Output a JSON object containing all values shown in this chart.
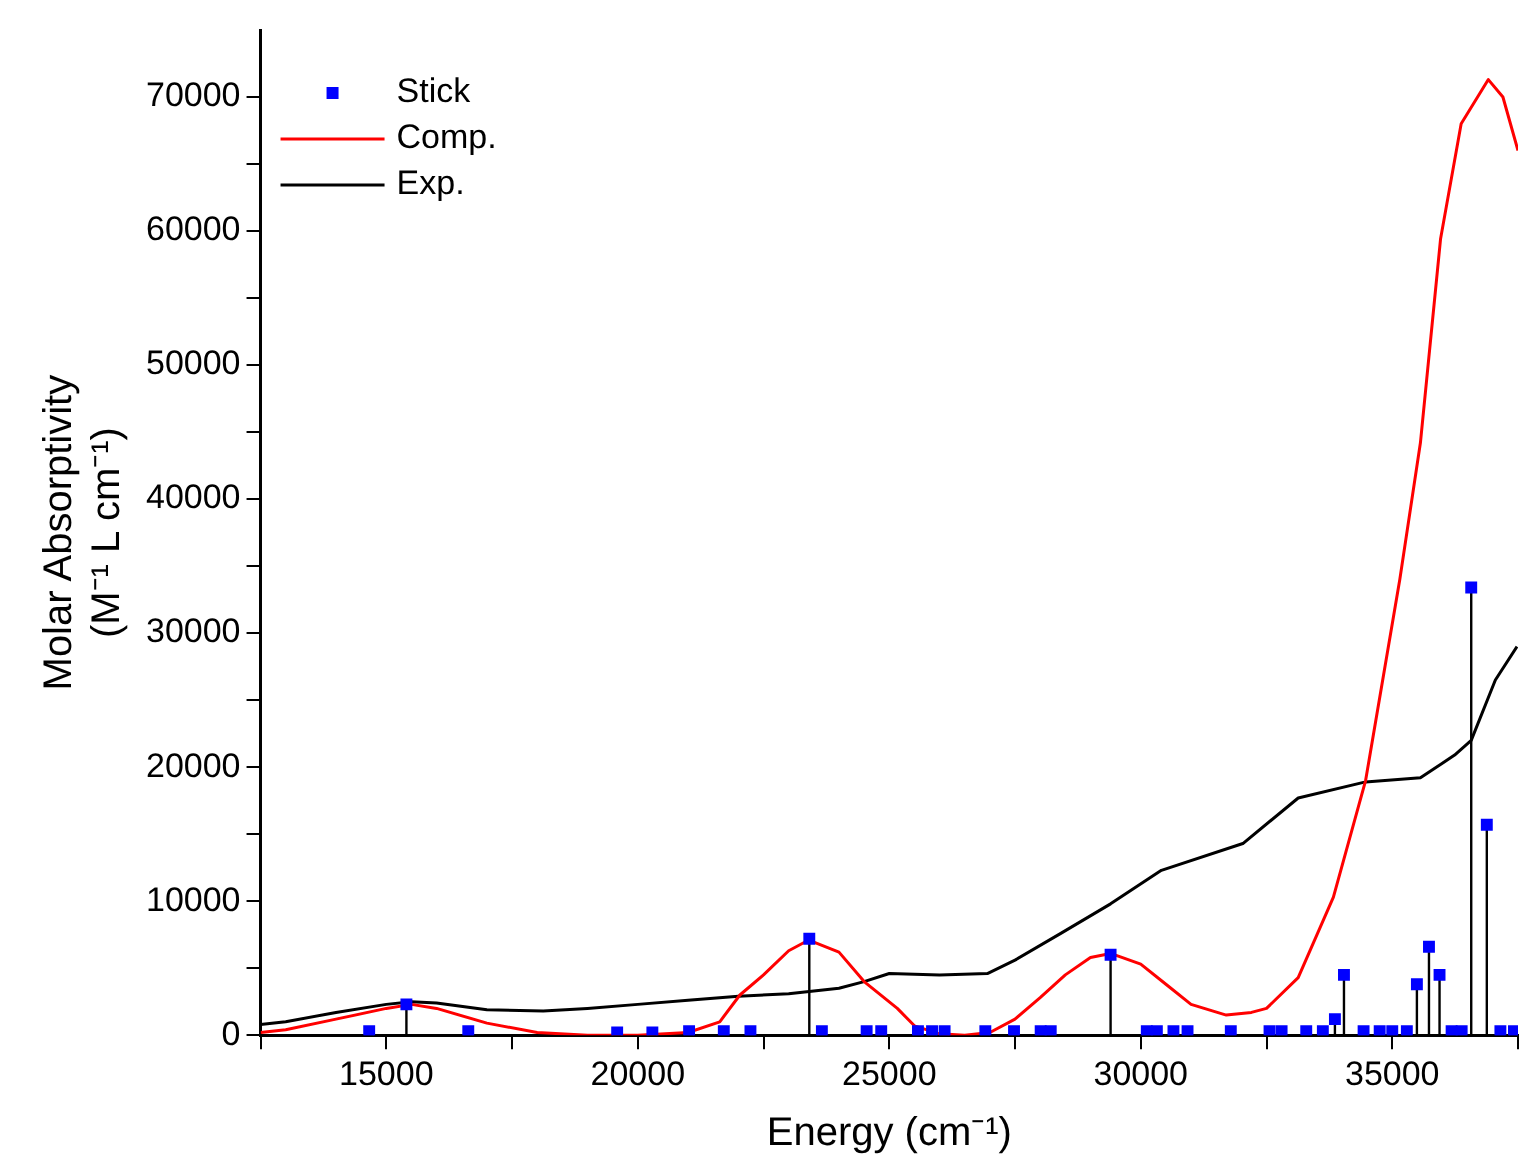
{
  "chart_data": {
    "type": "line",
    "xlabel": "Energy (cm⁻¹)",
    "ylabel": "Molar Absorptivity\n(M⁻¹ L cm⁻¹)",
    "xlim": [
      12500,
      37500
    ],
    "ylim": [
      0,
      75000
    ],
    "xticks": [
      {
        "value": 12500,
        "label": null
      },
      15000,
      {
        "value": 17500,
        "label": null
      },
      20000,
      {
        "value": 22500,
        "label": null
      },
      25000,
      {
        "value": 27500,
        "label": null
      },
      30000,
      {
        "value": 32500,
        "label": null
      },
      35000,
      {
        "value": 37500,
        "label": null
      }
    ],
    "yticks": [
      0,
      {
        "value": 5000,
        "label": null
      },
      10000,
      {
        "value": 15000,
        "label": null
      },
      20000,
      {
        "value": 25000,
        "label": null
      },
      30000,
      {
        "value": 35000,
        "label": null
      },
      40000,
      {
        "value": 45000,
        "label": null
      },
      50000,
      {
        "value": 55000,
        "label": null
      },
      60000,
      {
        "value": 65000,
        "label": null
      },
      70000
    ],
    "legend": "top left",
    "grid": false,
    "series": [
      {
        "name": "Stick",
        "type": "lollipop",
        "marker": "square",
        "color": "#0000ff",
        "x": [
          14660,
          15400,
          16630,
          19590,
          20290,
          21020,
          21710,
          22240,
          23410,
          23660,
          24550,
          24840,
          25570,
          25850,
          26100,
          26910,
          27480,
          28010,
          28210,
          29400,
          30120,
          30320,
          30650,
          30930,
          31790,
          32560,
          32800,
          33290,
          33620,
          33860,
          34040,
          34430,
          34750,
          35000,
          35290,
          35490,
          35730,
          35940,
          36180,
          36380,
          36570,
          36880,
          37150,
          37420
        ],
        "values": [
          300,
          2300,
          300,
          200,
          200,
          300,
          300,
          300,
          7200,
          300,
          300,
          300,
          300,
          300,
          300,
          300,
          300,
          300,
          300,
          6000,
          300,
          300,
          300,
          300,
          300,
          300,
          300,
          300,
          300,
          1200,
          4500,
          300,
          300,
          300,
          300,
          3800,
          6600,
          4500,
          300,
          300,
          33400,
          15700,
          300,
          300
        ]
      },
      {
        "name": "Comp.",
        "type": "line",
        "marker": "none",
        "color": "#ff0000",
        "x": [
          12500,
          13000,
          14000,
          15000,
          15500,
          16000,
          17000,
          18000,
          19000,
          20000,
          21000,
          21630,
          22030,
          22500,
          23000,
          23400,
          24000,
          24500,
          25160,
          25500,
          26000,
          26500,
          27000,
          27500,
          28000,
          28500,
          29000,
          29400,
          30000,
          30500,
          31000,
          31700,
          32200,
          32500,
          33130,
          33830,
          34470,
          35150,
          35560,
          35960,
          36370,
          36910,
          37200,
          37500
        ],
        "values": [
          200,
          400,
          1200,
          2000,
          2300,
          2000,
          900,
          200,
          0,
          0,
          200,
          1000,
          3000,
          4500,
          6300,
          7100,
          6200,
          4000,
          2000,
          700,
          100,
          0,
          200,
          1200,
          2800,
          4500,
          5800,
          6100,
          5300,
          3800,
          2300,
          1500,
          1700,
          2000,
          4300,
          10300,
          19000,
          34000,
          44200,
          59400,
          68000,
          71300,
          70000,
          66000
        ]
      },
      {
        "name": "Exp.",
        "type": "line",
        "marker": "none",
        "color": "#000000",
        "x": [
          12500,
          13000,
          14000,
          15000,
          15500,
          16000,
          17000,
          18120,
          19000,
          20000,
          21000,
          22000,
          23000,
          24000,
          24500,
          25000,
          26000,
          26950,
          27500,
          28410,
          29400,
          30410,
          32030,
          33130,
          34470,
          35560,
          36240,
          36570,
          37050,
          37480
        ],
        "values": [
          800,
          1000,
          1700,
          2300,
          2500,
          2400,
          1900,
          1800,
          2000,
          2300,
          2600,
          2900,
          3100,
          3500,
          4000,
          4600,
          4500,
          4600,
          5600,
          7600,
          9800,
          12300,
          14300,
          17700,
          18900,
          19200,
          20900,
          22000,
          26500,
          29000
        ]
      }
    ]
  }
}
